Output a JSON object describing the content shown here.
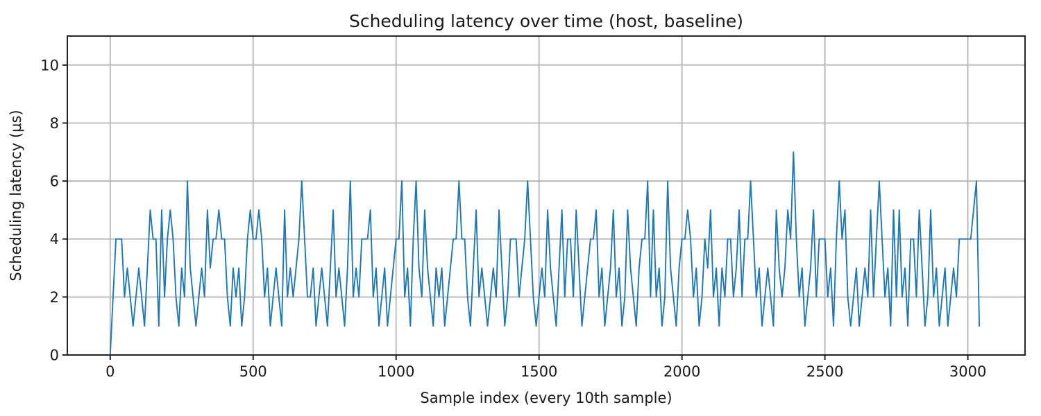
{
  "figure": {
    "background": "#ffffff",
    "text_color": "#1a1a1a",
    "spine_color": "#1a1a1a",
    "tick_color": "#1a1a1a"
  },
  "chart_data": {
    "type": "line",
    "title": "Scheduling latency over time (host, baseline)",
    "xlabel": "Sample index (every 10th sample)",
    "ylabel": "Scheduling latency (μs)",
    "line_color": "#1f77b4",
    "grid_color": "#b0b0b0",
    "grid": true,
    "legend": "none",
    "xlim": [
      -150,
      3200
    ],
    "ylim": [
      0,
      11
    ],
    "x_ticks": [
      0,
      500,
      1000,
      1500,
      2000,
      2500,
      3000
    ],
    "y_ticks": [
      0,
      2,
      4,
      6,
      8,
      10
    ],
    "x_start": 0,
    "x_step": 10,
    "values": [
      0,
      2,
      4,
      4,
      4,
      2,
      3,
      2,
      1,
      2,
      3,
      2,
      1,
      3,
      5,
      4,
      4,
      1,
      5,
      2,
      4,
      5,
      4,
      2,
      1,
      3,
      2,
      6,
      3,
      2,
      1,
      2,
      3,
      2,
      5,
      3,
      4,
      4,
      5,
      4,
      4,
      2,
      1,
      3,
      2,
      3,
      1,
      2,
      4,
      5,
      4,
      4,
      5,
      4,
      2,
      3,
      1,
      2,
      3,
      2,
      1,
      5,
      2,
      3,
      2,
      3,
      4,
      6,
      4,
      2,
      2,
      3,
      1,
      2,
      3,
      2,
      1,
      3,
      5,
      2,
      3,
      2,
      1,
      3,
      6,
      2,
      3,
      2,
      4,
      4,
      4,
      5,
      2,
      3,
      1,
      2,
      3,
      1,
      2,
      3,
      4,
      4,
      6,
      2,
      3,
      1,
      4,
      6,
      3,
      2,
      5,
      3,
      2,
      1,
      3,
      2,
      3,
      1,
      2,
      3,
      4,
      4,
      6,
      4,
      4,
      2,
      1,
      3,
      5,
      2,
      3,
      2,
      1,
      2,
      3,
      2,
      5,
      3,
      1,
      2,
      4,
      4,
      4,
      2,
      3,
      4,
      6,
      4,
      2,
      1,
      2,
      3,
      2,
      5,
      3,
      2,
      1,
      3,
      5,
      2,
      4,
      4,
      2,
      5,
      3,
      1,
      2,
      3,
      4,
      4,
      5,
      2,
      3,
      1,
      2,
      3,
      5,
      2,
      3,
      1,
      2,
      5,
      3,
      2,
      1,
      3,
      4,
      4,
      6,
      2,
      5,
      2,
      3,
      1,
      2,
      6,
      3,
      2,
      1,
      3,
      4,
      4,
      5,
      4,
      2,
      3,
      1,
      2,
      4,
      3,
      5,
      2,
      3,
      1,
      3,
      2,
      4,
      4,
      2,
      3,
      5,
      2,
      4,
      4,
      6,
      4,
      2,
      3,
      1,
      2,
      3,
      2,
      1,
      5,
      3,
      2,
      3,
      5,
      4,
      7,
      4,
      2,
      3,
      1,
      2,
      3,
      5,
      2,
      4,
      4,
      4,
      2,
      3,
      1,
      4,
      6,
      4,
      5,
      2,
      1,
      2,
      3,
      1,
      2,
      3,
      2,
      5,
      2,
      4,
      6,
      4,
      2,
      3,
      1,
      5,
      2,
      5,
      2,
      3,
      1,
      4,
      4,
      2,
      5,
      3,
      1,
      2,
      5,
      2,
      3,
      1,
      2,
      3,
      1,
      2,
      3,
      2,
      4,
      4,
      4,
      4,
      4,
      5,
      6,
      1
    ]
  }
}
